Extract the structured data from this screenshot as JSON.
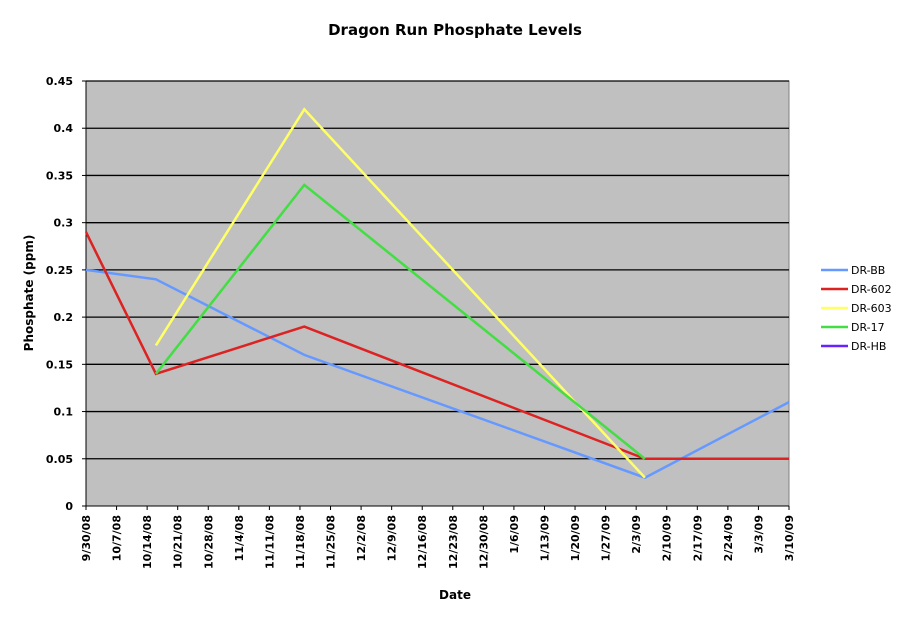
{
  "chart_data": {
    "type": "line",
    "title": "Dragon Run Phosphate Levels",
    "xlabel": "Date",
    "ylabel": "Phosphate (ppm)",
    "ylim": [
      0,
      0.45
    ],
    "yticks": [
      "0",
      "0.05",
      "0.1",
      "0.15",
      "0.2",
      "0.25",
      "0.3",
      "0.35",
      "0.4",
      "0.45"
    ],
    "xlim": [
      "2008-09-30",
      "2009-03-10"
    ],
    "xticks": [
      {
        "date": "2008-09-30",
        "label": "9/30/08"
      },
      {
        "date": "2008-10-07",
        "label": "10/7/08"
      },
      {
        "date": "2008-10-14",
        "label": "10/14/08"
      },
      {
        "date": "2008-10-21",
        "label": "10/21/08"
      },
      {
        "date": "2008-10-28",
        "label": "10/28/08"
      },
      {
        "date": "2008-11-04",
        "label": "11/4/08"
      },
      {
        "date": "2008-11-11",
        "label": "11/11/08"
      },
      {
        "date": "2008-11-18",
        "label": "11/18/08"
      },
      {
        "date": "2008-11-25",
        "label": "11/25/08"
      },
      {
        "date": "2008-12-02",
        "label": "12/2/08"
      },
      {
        "date": "2008-12-09",
        "label": "12/9/08"
      },
      {
        "date": "2008-12-16",
        "label": "12/16/08"
      },
      {
        "date": "2008-12-23",
        "label": "12/23/08"
      },
      {
        "date": "2008-12-30",
        "label": "12/30/08"
      },
      {
        "date": "2009-01-06",
        "label": "1/6/09"
      },
      {
        "date": "2009-01-13",
        "label": "1/13/09"
      },
      {
        "date": "2009-01-20",
        "label": "1/20/09"
      },
      {
        "date": "2009-01-27",
        "label": "1/27/09"
      },
      {
        "date": "2009-02-03",
        "label": "2/3/09"
      },
      {
        "date": "2009-02-10",
        "label": "2/10/09"
      },
      {
        "date": "2009-02-17",
        "label": "2/17/09"
      },
      {
        "date": "2009-02-24",
        "label": "2/24/09"
      },
      {
        "date": "2009-03-03",
        "label": "3/3/09"
      },
      {
        "date": "2009-03-10",
        "label": "3/10/09"
      }
    ],
    "grid": true,
    "legend_position": "right",
    "plot_background": "#c0c0c0",
    "series": [
      {
        "name": "DR-BB",
        "color": "#6699ff",
        "points": [
          [
            "2008-09-30",
            0.25
          ],
          [
            "2008-10-16",
            0.24
          ],
          [
            "2008-11-19",
            0.16
          ],
          [
            "2009-02-05",
            0.03
          ],
          [
            "2009-03-10",
            0.11
          ]
        ]
      },
      {
        "name": "DR-602",
        "color": "#dd2222",
        "points": [
          [
            "2008-09-30",
            0.29
          ],
          [
            "2008-10-16",
            0.14
          ],
          [
            "2008-11-19",
            0.19
          ],
          [
            "2009-02-05",
            0.05
          ],
          [
            "2009-03-10",
            0.05
          ]
        ]
      },
      {
        "name": "DR-603",
        "color": "#ffff66",
        "points": [
          [
            "2008-10-16",
            0.17
          ],
          [
            "2008-11-19",
            0.42
          ],
          [
            "2009-02-05",
            0.03
          ]
        ]
      },
      {
        "name": "DR-17",
        "color": "#44dd44",
        "points": [
          [
            "2008-10-16",
            0.14
          ],
          [
            "2008-11-19",
            0.34
          ],
          [
            "2009-02-05",
            0.05
          ]
        ]
      },
      {
        "name": "DR-HB",
        "color": "#6622ff",
        "points": []
      }
    ]
  }
}
